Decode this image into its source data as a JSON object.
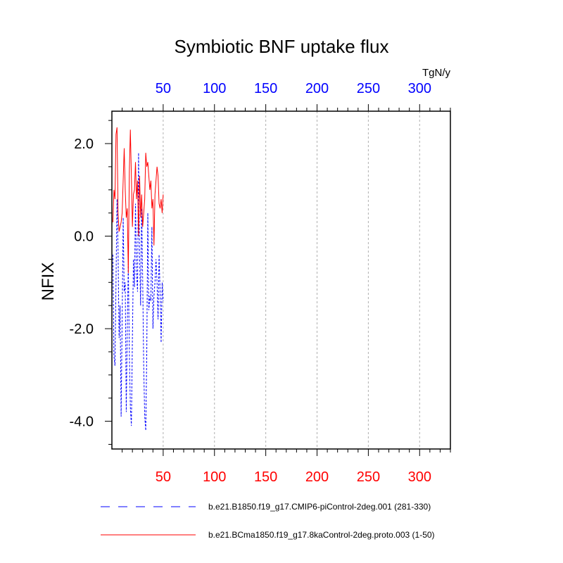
{
  "chart_data": {
    "type": "line",
    "title": "Symbiotic BNF uptake flux",
    "ylabel": "NFIX",
    "units": "TgN/y",
    "xlim": [
      0,
      330
    ],
    "ylim": [
      -4.6,
      2.7
    ],
    "x_major_ticks": [
      50,
      100,
      150,
      200,
      250,
      300
    ],
    "x_tick_labels": [
      "50",
      "100",
      "150",
      "200",
      "250",
      "300"
    ],
    "x_minor_step": 10,
    "y_major_ticks": [
      -4,
      -2,
      0,
      2
    ],
    "y_tick_labels": [
      "-4.0",
      "-2.0",
      "0.0",
      "2.0"
    ],
    "y_minor_step": 0.5,
    "grid": "vertical dashed at major x ticks",
    "top_axis_color": "#0000ff",
    "bottom_axis_color": "#ff0000",
    "series": [
      {
        "name": "b.e21.B1850.f19_g17.CMIP6-piControl-2deg.001 (281-330)",
        "color": "#0000ff",
        "style": "dashed",
        "x": [
          1,
          2,
          3,
          4,
          5,
          6,
          7,
          8,
          9,
          10,
          11,
          12,
          13,
          14,
          15,
          16,
          17,
          18,
          19,
          20,
          21,
          22,
          23,
          24,
          25,
          26,
          27,
          28,
          29,
          30,
          31,
          32,
          33,
          34,
          35,
          36,
          37,
          38,
          39,
          40,
          41,
          42,
          43,
          44,
          45,
          46,
          47,
          48,
          49,
          50
        ],
        "values": [
          -0.4,
          -2.6,
          -2.8,
          -1.0,
          0.8,
          -0.3,
          -2.2,
          -1.5,
          -3.9,
          -1.8,
          0.4,
          -1.2,
          -1.0,
          -3.8,
          -2.0,
          -0.6,
          -2.5,
          -3.7,
          -4.1,
          -2.2,
          -0.5,
          -1.1,
          0.7,
          -0.8,
          -1.2,
          1.8,
          -0.4,
          -1.5,
          0.6,
          -0.9,
          -2.8,
          -3.9,
          -4.2,
          -2.5,
          0.5,
          -1.6,
          -1.3,
          -1.4,
          0.2,
          -2.0,
          -1.3,
          -1.0,
          -0.5,
          -1.0,
          -1.8,
          -0.4,
          -1.2,
          -2.3,
          -1.0,
          -1.4
        ]
      },
      {
        "name": "b.e21.BCma1850.f19_g17.8kaControl-2deg.proto.003 (1-50)",
        "color": "#ff0000",
        "style": "solid",
        "x": [
          1,
          2,
          3,
          4,
          5,
          6,
          7,
          8,
          9,
          10,
          11,
          12,
          13,
          14,
          15,
          16,
          17,
          18,
          19,
          20,
          21,
          22,
          23,
          24,
          25,
          26,
          27,
          28,
          29,
          30,
          31,
          32,
          33,
          34,
          35,
          36,
          37,
          38,
          39,
          40,
          41,
          42,
          43,
          44,
          45,
          46,
          47,
          48,
          49,
          50
        ],
        "values": [
          0.3,
          1.0,
          0.8,
          2.2,
          2.35,
          0.5,
          0.1,
          0.2,
          0.3,
          0.5,
          1.2,
          1.9,
          1.0,
          0.4,
          0.6,
          -0.8,
          1.4,
          2.3,
          1.3,
          0.2,
          0.9,
          1.0,
          1.6,
          0.8,
          1.2,
          0.0,
          1.3,
          0.4,
          0.9,
          0.2,
          0.5,
          0.8,
          1.8,
          1.5,
          1.6,
          1.3,
          1.0,
          1.2,
          0.6,
          0.8,
          -0.2,
          0.9,
          1.2,
          1.5,
          1.3,
          0.7,
          0.6,
          0.8,
          0.5,
          0.9
        ]
      }
    ]
  }
}
